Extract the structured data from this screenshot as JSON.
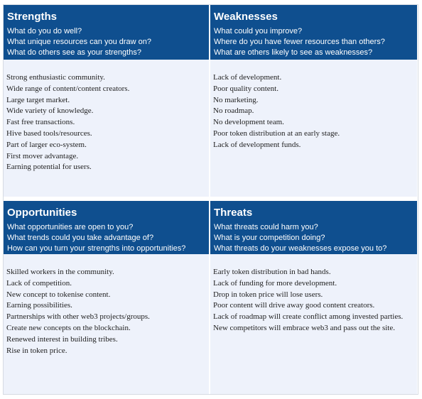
{
  "colors": {
    "header_bg": "#0f4f8f",
    "header_text": "#ffffff",
    "body_bg": "#eef2fb",
    "body_text": "#1e1e1e"
  },
  "strengths": {
    "title": "Strengths",
    "questions": [
      "What do you do well?",
      "What unique resources can you draw on?",
      "What do others see as your strengths?"
    ],
    "items": [
      "Strong enthusiastic community.",
      "Wide range of content/content creators.",
      "Large target market.",
      "Wide variety of knowledge.",
      "Fast free transactions.",
      "Hive based tools/resources.",
      "Part of larger eco-system.",
      "First mover advantage.",
      "Earning potential for users."
    ]
  },
  "weaknesses": {
    "title": "Weaknesses",
    "questions": [
      "What could you improve?",
      "Where do you have fewer resources than others?",
      "What are others likely to see as weaknesses?"
    ],
    "items": [
      "Lack of development.",
      "Poor quality content.",
      "No marketing.",
      "No roadmap.",
      "No development team.",
      "Poor token distribution at an early stage.",
      "Lack of development funds."
    ]
  },
  "opportunities": {
    "title": "Opportunities",
    "questions": [
      "What opportunities are open to you?",
      "What trends could you take advantage of?",
      "How can you turn your strengths into opportunities?"
    ],
    "items": [
      "Skilled workers in the community.",
      "Lack of competition.",
      "New concept to tokenise content.",
      "Earning possibilities.",
      "Partnerships with other web3 projects/groups.",
      "Create new concepts on the blockchain.",
      "Renewed interest in building tribes.",
      "Rise in token price."
    ]
  },
  "threats": {
    "title": "Threats",
    "questions": [
      "What threats could harm you?",
      "What is your competition doing?",
      "What threats do your weaknesses expose you to?"
    ],
    "items": [
      "Early token distribution in bad hands.",
      "Lack of funding for more development.",
      "Drop in token price will lose users.",
      "Poor content will drive away good content creators.",
      "Lack of roadmap will create conflict among invested parties.",
      "New competitors will embrace web3 and pass out the site."
    ]
  }
}
